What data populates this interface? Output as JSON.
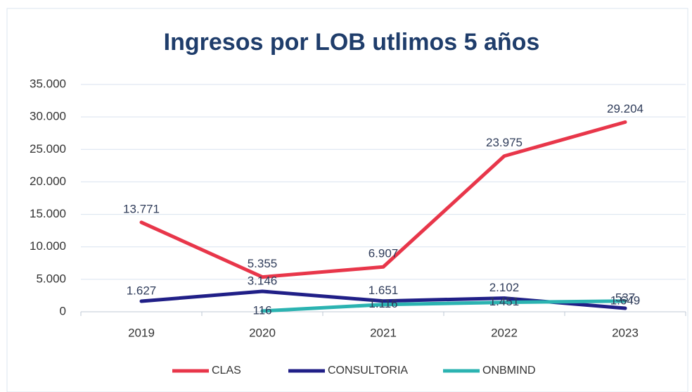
{
  "chart_data": {
    "type": "line",
    "title": "Ingresos por LOB utlimos 5 años",
    "categories": [
      "2019",
      "2020",
      "2021",
      "2022",
      "2023"
    ],
    "series": [
      {
        "name": "CLAS",
        "color": "#e8364a",
        "values": [
          13771,
          5355,
          6907,
          23975,
          29204
        ],
        "value_labels": [
          "13.771",
          "5.355",
          "6.907",
          "23.975",
          "29.204"
        ]
      },
      {
        "name": "CONSULTORIA",
        "color": "#201f87",
        "values": [
          1627,
          3146,
          1651,
          2102,
          537
        ],
        "value_labels": [
          "1.627",
          "3.146",
          "1.651",
          "2.102",
          "537"
        ]
      },
      {
        "name": "ONBMIND",
        "color": "#2bb3b1",
        "values": [
          null,
          116,
          1116,
          1451,
          1649
        ],
        "value_labels": [
          null,
          "116",
          "1.116",
          "1.451",
          "1.649"
        ]
      }
    ],
    "ylim": [
      0,
      35000
    ],
    "yticks": [
      0,
      {
        "value": 5000,
        "label": "5.000"
      },
      {
        "value": 10000,
        "label": "10.000"
      },
      {
        "value": 15000,
        "label": "15.000"
      },
      {
        "value": 20000,
        "label": "20.000"
      },
      {
        "value": 25000,
        "label": "25.000"
      },
      {
        "value": 30000,
        "label": "30.000"
      },
      {
        "value": 35000,
        "label": "35.000"
      }
    ],
    "grid": true,
    "legend": "bottom"
  }
}
